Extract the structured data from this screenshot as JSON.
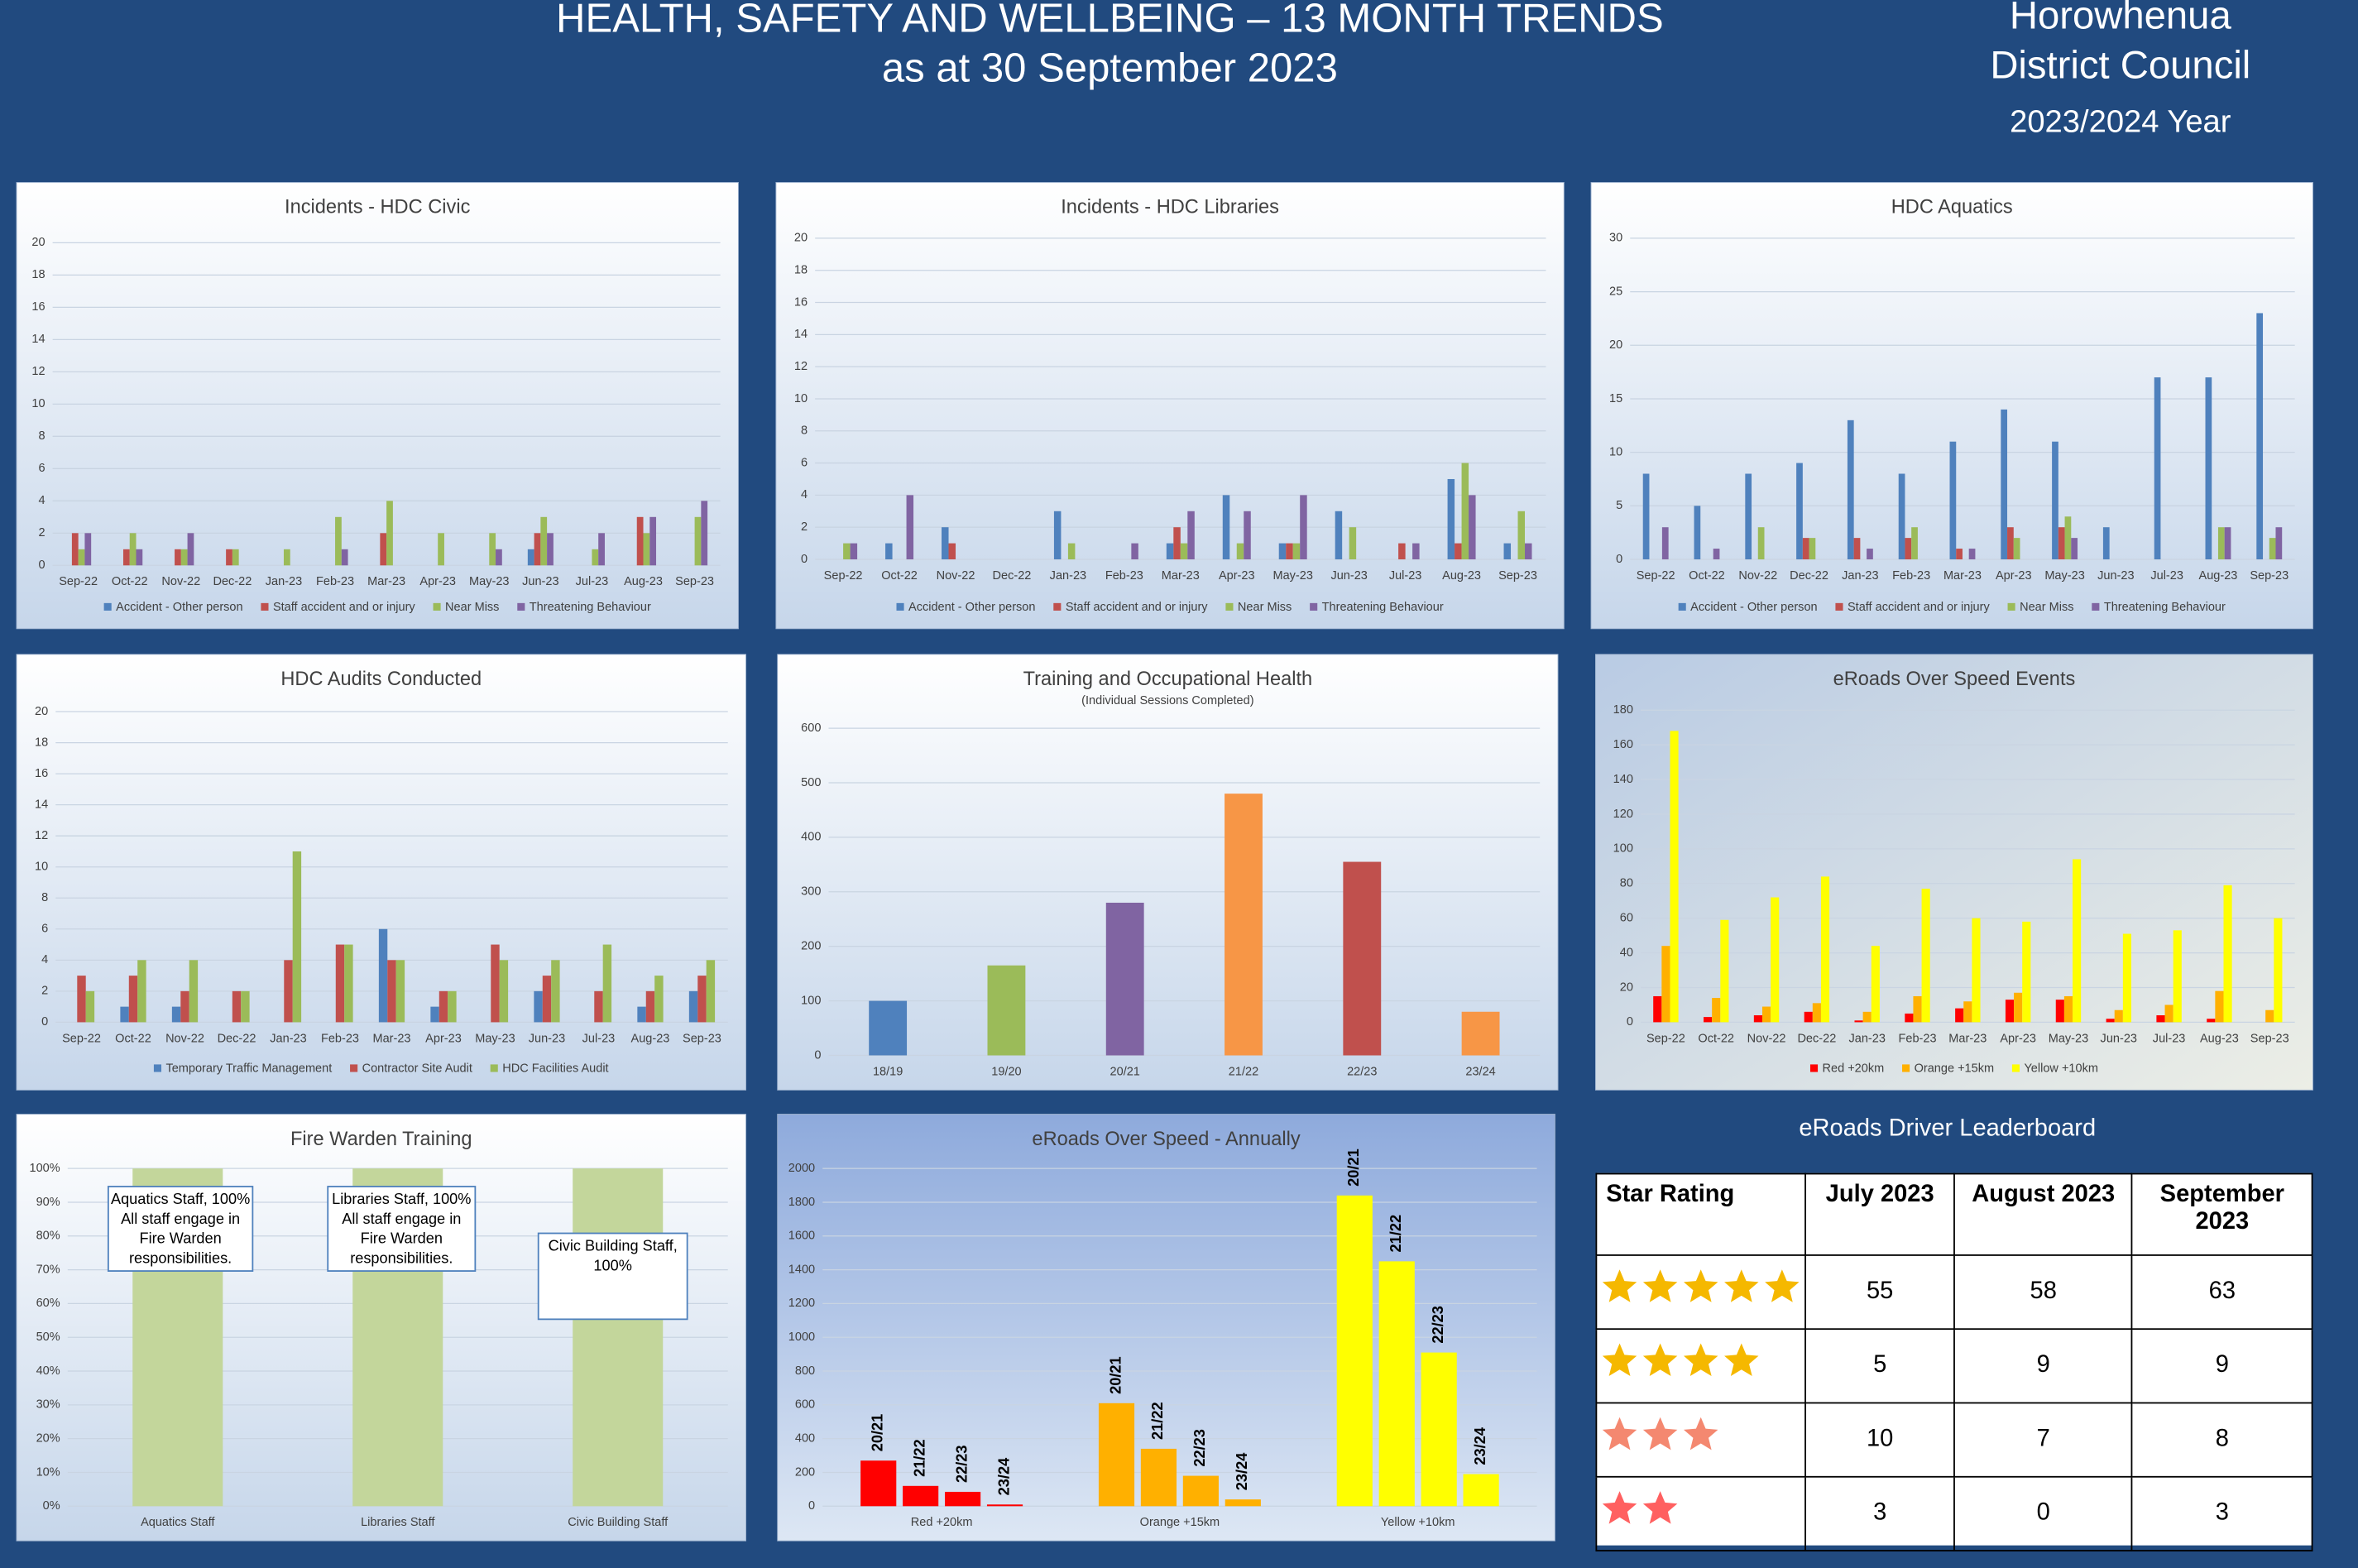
{
  "header": {
    "title": "HEALTH, SAFETY AND WELLBEING – 13 MONTH TRENDS",
    "subtitle": "as at 30 September 2023",
    "org_line1": "Horowhenua",
    "org_line2": "District Council",
    "year": "2023/2024 Year"
  },
  "chart_data": [
    {
      "type": "bar",
      "title": "Incidents - HDC Civic",
      "categories": [
        "Sep-22",
        "Oct-22",
        "Nov-22",
        "Dec-22",
        "Jan-23",
        "Feb-23",
        "Mar-23",
        "Apr-23",
        "May-23",
        "Jun-23",
        "Jul-23",
        "Aug-23",
        "Sep-23"
      ],
      "series": [
        {
          "name": "Accident - Other person",
          "color": "#4f81bd",
          "values": [
            0,
            0,
            0,
            0,
            0,
            0,
            0,
            0,
            0,
            1,
            0,
            0,
            0
          ]
        },
        {
          "name": "Staff accident and or injury",
          "color": "#c0504d",
          "values": [
            2,
            1,
            1,
            1,
            0,
            0,
            2,
            0,
            0,
            2,
            0,
            3,
            0
          ]
        },
        {
          "name": "Near Miss",
          "color": "#9bbb59",
          "values": [
            1,
            2,
            1,
            1,
            1,
            3,
            4,
            2,
            2,
            3,
            1,
            2,
            3
          ]
        },
        {
          "name": "Threatening Behaviour",
          "color": "#8064a2",
          "values": [
            2,
            1,
            2,
            0,
            0,
            1,
            0,
            0,
            1,
            2,
            2,
            3,
            4
          ]
        }
      ],
      "ylim": [
        0,
        20
      ],
      "yticks": [
        0,
        2,
        4,
        6,
        8,
        10,
        12,
        14,
        16,
        18,
        20
      ],
      "grid": true,
      "legend": "bottom"
    },
    {
      "type": "bar",
      "title": "Incidents - HDC Libraries",
      "categories": [
        "Sep-22",
        "Oct-22",
        "Nov-22",
        "Dec-22",
        "Jan-23",
        "Feb-23",
        "Mar-23",
        "Apr-23",
        "May-23",
        "Jun-23",
        "Jul-23",
        "Aug-23",
        "Sep-23"
      ],
      "series": [
        {
          "name": "Accident - Other person",
          "color": "#4f81bd",
          "values": [
            0,
            1,
            2,
            0,
            3,
            0,
            1,
            4,
            1,
            3,
            0,
            5,
            1
          ]
        },
        {
          "name": "Staff accident and or injury",
          "color": "#c0504d",
          "values": [
            0,
            0,
            1,
            0,
            0,
            0,
            2,
            0,
            1,
            0,
            1,
            1,
            0
          ]
        },
        {
          "name": "Near Miss",
          "color": "#9bbb59",
          "values": [
            1,
            0,
            0,
            0,
            1,
            0,
            1,
            1,
            1,
            2,
            0,
            6,
            3
          ]
        },
        {
          "name": "Threatening Behaviour",
          "color": "#8064a2",
          "values": [
            1,
            4,
            0,
            0,
            0,
            1,
            3,
            3,
            4,
            0,
            1,
            4,
            1
          ]
        }
      ],
      "ylim": [
        0,
        20
      ],
      "yticks": [
        0,
        2,
        4,
        6,
        8,
        10,
        12,
        14,
        16,
        18,
        20
      ],
      "grid": true,
      "legend": "bottom"
    },
    {
      "type": "bar",
      "title": "HDC Aquatics",
      "categories": [
        "Sep-22",
        "Oct-22",
        "Nov-22",
        "Dec-22",
        "Jan-23",
        "Feb-23",
        "Mar-23",
        "Apr-23",
        "May-23",
        "Jun-23",
        "Jul-23",
        "Aug-23",
        "Sep-23"
      ],
      "series": [
        {
          "name": "Accident - Other person",
          "color": "#4f81bd",
          "values": [
            8,
            5,
            8,
            9,
            13,
            8,
            11,
            14,
            11,
            3,
            17,
            17,
            23
          ]
        },
        {
          "name": "Staff accident and or injury",
          "color": "#c0504d",
          "values": [
            0,
            0,
            0,
            2,
            2,
            2,
            1,
            3,
            3,
            0,
            0,
            0,
            0
          ]
        },
        {
          "name": "Near Miss",
          "color": "#9bbb59",
          "values": [
            0,
            0,
            3,
            2,
            0,
            3,
            0,
            2,
            4,
            0,
            0,
            3,
            2
          ]
        },
        {
          "name": "Threatening Behaviour",
          "color": "#8064a2",
          "values": [
            3,
            1,
            0,
            0,
            1,
            0,
            1,
            0,
            2,
            0,
            0,
            3,
            3
          ]
        }
      ],
      "ylim": [
        0,
        30
      ],
      "yticks": [
        0,
        5,
        10,
        15,
        20,
        25,
        30
      ],
      "grid": true,
      "legend": "bottom"
    },
    {
      "type": "bar",
      "title": "HDC Audits Conducted",
      "categories": [
        "Sep-22",
        "Oct-22",
        "Nov-22",
        "Dec-22",
        "Jan-23",
        "Feb-23",
        "Mar-23",
        "Apr-23",
        "May-23",
        "Jun-23",
        "Jul-23",
        "Aug-23",
        "Sep-23"
      ],
      "series": [
        {
          "name": "Temporary Traffic Management",
          "color": "#4f81bd",
          "values": [
            0,
            1,
            1,
            0,
            0,
            0,
            6,
            1,
            0,
            2,
            0,
            1,
            2
          ]
        },
        {
          "name": "Contractor Site Audit",
          "color": "#c0504d",
          "values": [
            3,
            3,
            2,
            2,
            4,
            5,
            4,
            2,
            5,
            3,
            2,
            2,
            3
          ]
        },
        {
          "name": "HDC Facilities Audit",
          "color": "#9bbb59",
          "values": [
            2,
            4,
            4,
            2,
            11,
            5,
            4,
            2,
            4,
            4,
            5,
            3,
            4
          ]
        }
      ],
      "ylim": [
        0,
        20
      ],
      "yticks": [
        0,
        2,
        4,
        6,
        8,
        10,
        12,
        14,
        16,
        18,
        20
      ],
      "grid": true,
      "legend": "bottom"
    },
    {
      "type": "bar",
      "title": "Training and Occupational Health",
      "subtitle": "(Individual Sessions Completed)",
      "categories": [
        "18/19",
        "19/20",
        "20/21",
        "21/22",
        "22/23",
        "23/24"
      ],
      "values": [
        100,
        165,
        280,
        480,
        355,
        80
      ],
      "colors": [
        "#4f81bd",
        "#9bbb59",
        "#8064a2",
        "#f79646",
        "#c0504d",
        "#f79646"
      ],
      "ylim": [
        0,
        600
      ],
      "yticks": [
        0,
        100,
        200,
        300,
        400,
        500,
        600
      ],
      "grid": true
    },
    {
      "type": "bar",
      "title": "eRoads Over Speed Events",
      "categories": [
        "Sep-22",
        "Oct-22",
        "Nov-22",
        "Dec-22",
        "Jan-23",
        "Feb-23",
        "Mar-23",
        "Apr-23",
        "May-23",
        "Jun-23",
        "Jul-23",
        "Aug-23",
        "Sep-23"
      ],
      "series": [
        {
          "name": "Red +20km",
          "color": "#ff0000",
          "values": [
            15,
            3,
            4,
            6,
            1,
            5,
            8,
            13,
            13,
            2,
            4,
            2,
            0
          ]
        },
        {
          "name": "Orange +15km",
          "color": "#ffb000",
          "values": [
            44,
            14,
            9,
            11,
            6,
            15,
            12,
            17,
            15,
            7,
            10,
            18,
            7
          ]
        },
        {
          "name": "Yellow +10km",
          "color": "#ffff00",
          "values": [
            168,
            59,
            72,
            84,
            44,
            77,
            60,
            58,
            94,
            51,
            53,
            79,
            60
          ]
        }
      ],
      "ylim": [
        0,
        180
      ],
      "yticks": [
        0,
        20,
        40,
        60,
        80,
        100,
        120,
        140,
        160,
        180
      ],
      "grid": true,
      "legend": "bottom"
    },
    {
      "type": "bar",
      "title": "Fire Warden Training",
      "categories": [
        "Aquatics Staff",
        "Libraries Staff",
        "Civic Building Staff"
      ],
      "values": [
        100,
        100,
        100
      ],
      "color": "#c3d69b",
      "annotations": [
        [
          "Aquatics Staff, 100%",
          "All staff engage in",
          "Fire Warden",
          "responsibilities."
        ],
        [
          "Libraries Staff, 100%",
          "All staff engage in",
          "Fire Warden",
          "responsibilities."
        ],
        [
          "Civic Building Staff,",
          "100%"
        ]
      ],
      "ylim": [
        0,
        100
      ],
      "yticks": [
        {
          "value": 0,
          "label": "0%"
        },
        {
          "value": 10,
          "label": "10%"
        },
        {
          "value": 20,
          "label": "20%"
        },
        {
          "value": 30,
          "label": "30%"
        },
        {
          "value": 40,
          "label": "40%"
        },
        {
          "value": 50,
          "label": "50%"
        },
        {
          "value": 60,
          "label": "60%"
        },
        {
          "value": 70,
          "label": "70%"
        },
        {
          "value": 80,
          "label": "80%"
        },
        {
          "value": 90,
          "label": "90%"
        },
        {
          "value": 100,
          "label": "100%"
        }
      ],
      "grid": true
    },
    {
      "type": "bar",
      "title": "eRoads Over Speed - Annually",
      "categories": [
        "Red +20km",
        "Orange +15km",
        "Yellow +10km"
      ],
      "colors": [
        "#ff0000",
        "#ffb000",
        "#ffff00"
      ],
      "series": [
        {
          "name": "20/21",
          "values": [
            270,
            610,
            1840
          ]
        },
        {
          "name": "21/22",
          "values": [
            120,
            340,
            1450
          ]
        },
        {
          "name": "22/23",
          "values": [
            85,
            180,
            910
          ]
        },
        {
          "name": "23/24",
          "values": [
            10,
            40,
            190
          ]
        }
      ],
      "ylim": [
        0,
        2000
      ],
      "yticks": [
        0,
        200,
        400,
        600,
        800,
        1000,
        1200,
        1400,
        1600,
        1800,
        2000
      ],
      "grid": true
    }
  ],
  "leaderboard": {
    "title": "eRoads Driver Leaderboard",
    "columns": [
      "Star Rating",
      "July 2023",
      "August 2023",
      "September 2023"
    ],
    "rows": [
      [
        55,
        58,
        63
      ],
      [
        5,
        9,
        9
      ],
      [
        10,
        7,
        8
      ],
      [
        3,
        0,
        3
      ]
    ]
  }
}
